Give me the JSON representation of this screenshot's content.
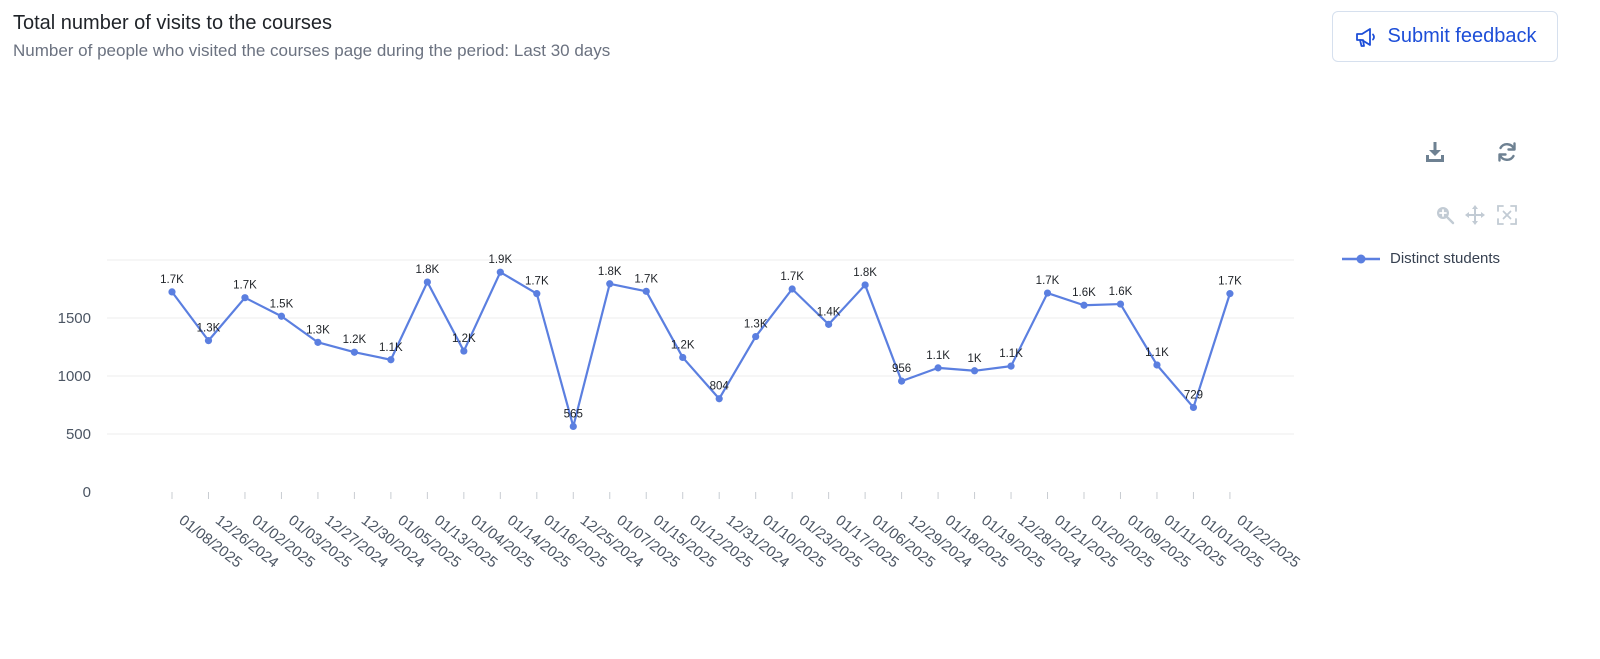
{
  "header": {
    "title": "Total number of visits to the courses",
    "subtitle": "Number of people who visited the courses page during the period: Last 30 days"
  },
  "feedback": {
    "label": "Submit feedback",
    "icon": "megaphone-icon"
  },
  "toolbar": {
    "icons": [
      "download-icon",
      "refresh-icon",
      "zoom-in-icon",
      "pan-icon",
      "reset-zoom-icon"
    ]
  },
  "colors": {
    "series": "#5b7fe0",
    "button_text": "#1d4ed8",
    "grid": "#ececec"
  },
  "chart_data": {
    "type": "line",
    "title": "",
    "xlabel": "",
    "ylabel": "",
    "ylim": [
      0,
      2000
    ],
    "yticks": [
      0,
      500,
      1000,
      1500
    ],
    "grid": true,
    "legend_position": "right",
    "categories": [
      "01/08/2025",
      "12/26/2024",
      "01/02/2025",
      "01/03/2025",
      "12/27/2024",
      "12/30/2024",
      "01/05/2025",
      "01/13/2025",
      "01/04/2025",
      "01/14/2025",
      "01/16/2025",
      "12/25/2024",
      "01/07/2025",
      "01/15/2025",
      "01/12/2025",
      "12/31/2024",
      "01/10/2025",
      "01/23/2025",
      "01/17/2025",
      "01/06/2025",
      "12/29/2024",
      "01/18/2025",
      "01/19/2025",
      "12/28/2024",
      "01/21/2025",
      "01/20/2025",
      "01/09/2025",
      "01/11/2025",
      "01/01/2025",
      "01/22/2025"
    ],
    "series": [
      {
        "name": "Distinct students",
        "values": [
          1725,
          1305,
          1675,
          1515,
          1290,
          1205,
          1140,
          1810,
          1215,
          1895,
          1710,
          565,
          1795,
          1730,
          1160,
          804,
          1340,
          1750,
          1445,
          1785,
          956,
          1070,
          1045,
          1085,
          1715,
          1610,
          1620,
          1095,
          729,
          1710
        ],
        "labels": [
          "1.7K",
          "1.3K",
          "1.7K",
          "1.5K",
          "1.3K",
          "1.2K",
          "1.1K",
          "1.8K",
          "1.2K",
          "1.9K",
          "1.7K",
          "565",
          "1.8K",
          "1.7K",
          "1.2K",
          "804",
          "1.3K",
          "1.7K",
          "1.4K",
          "1.8K",
          "956",
          "1.1K",
          "1K",
          "1.1K",
          "1.7K",
          "1.6K",
          "1.6K",
          "1.1K",
          "729",
          "1.7K"
        ]
      }
    ]
  }
}
